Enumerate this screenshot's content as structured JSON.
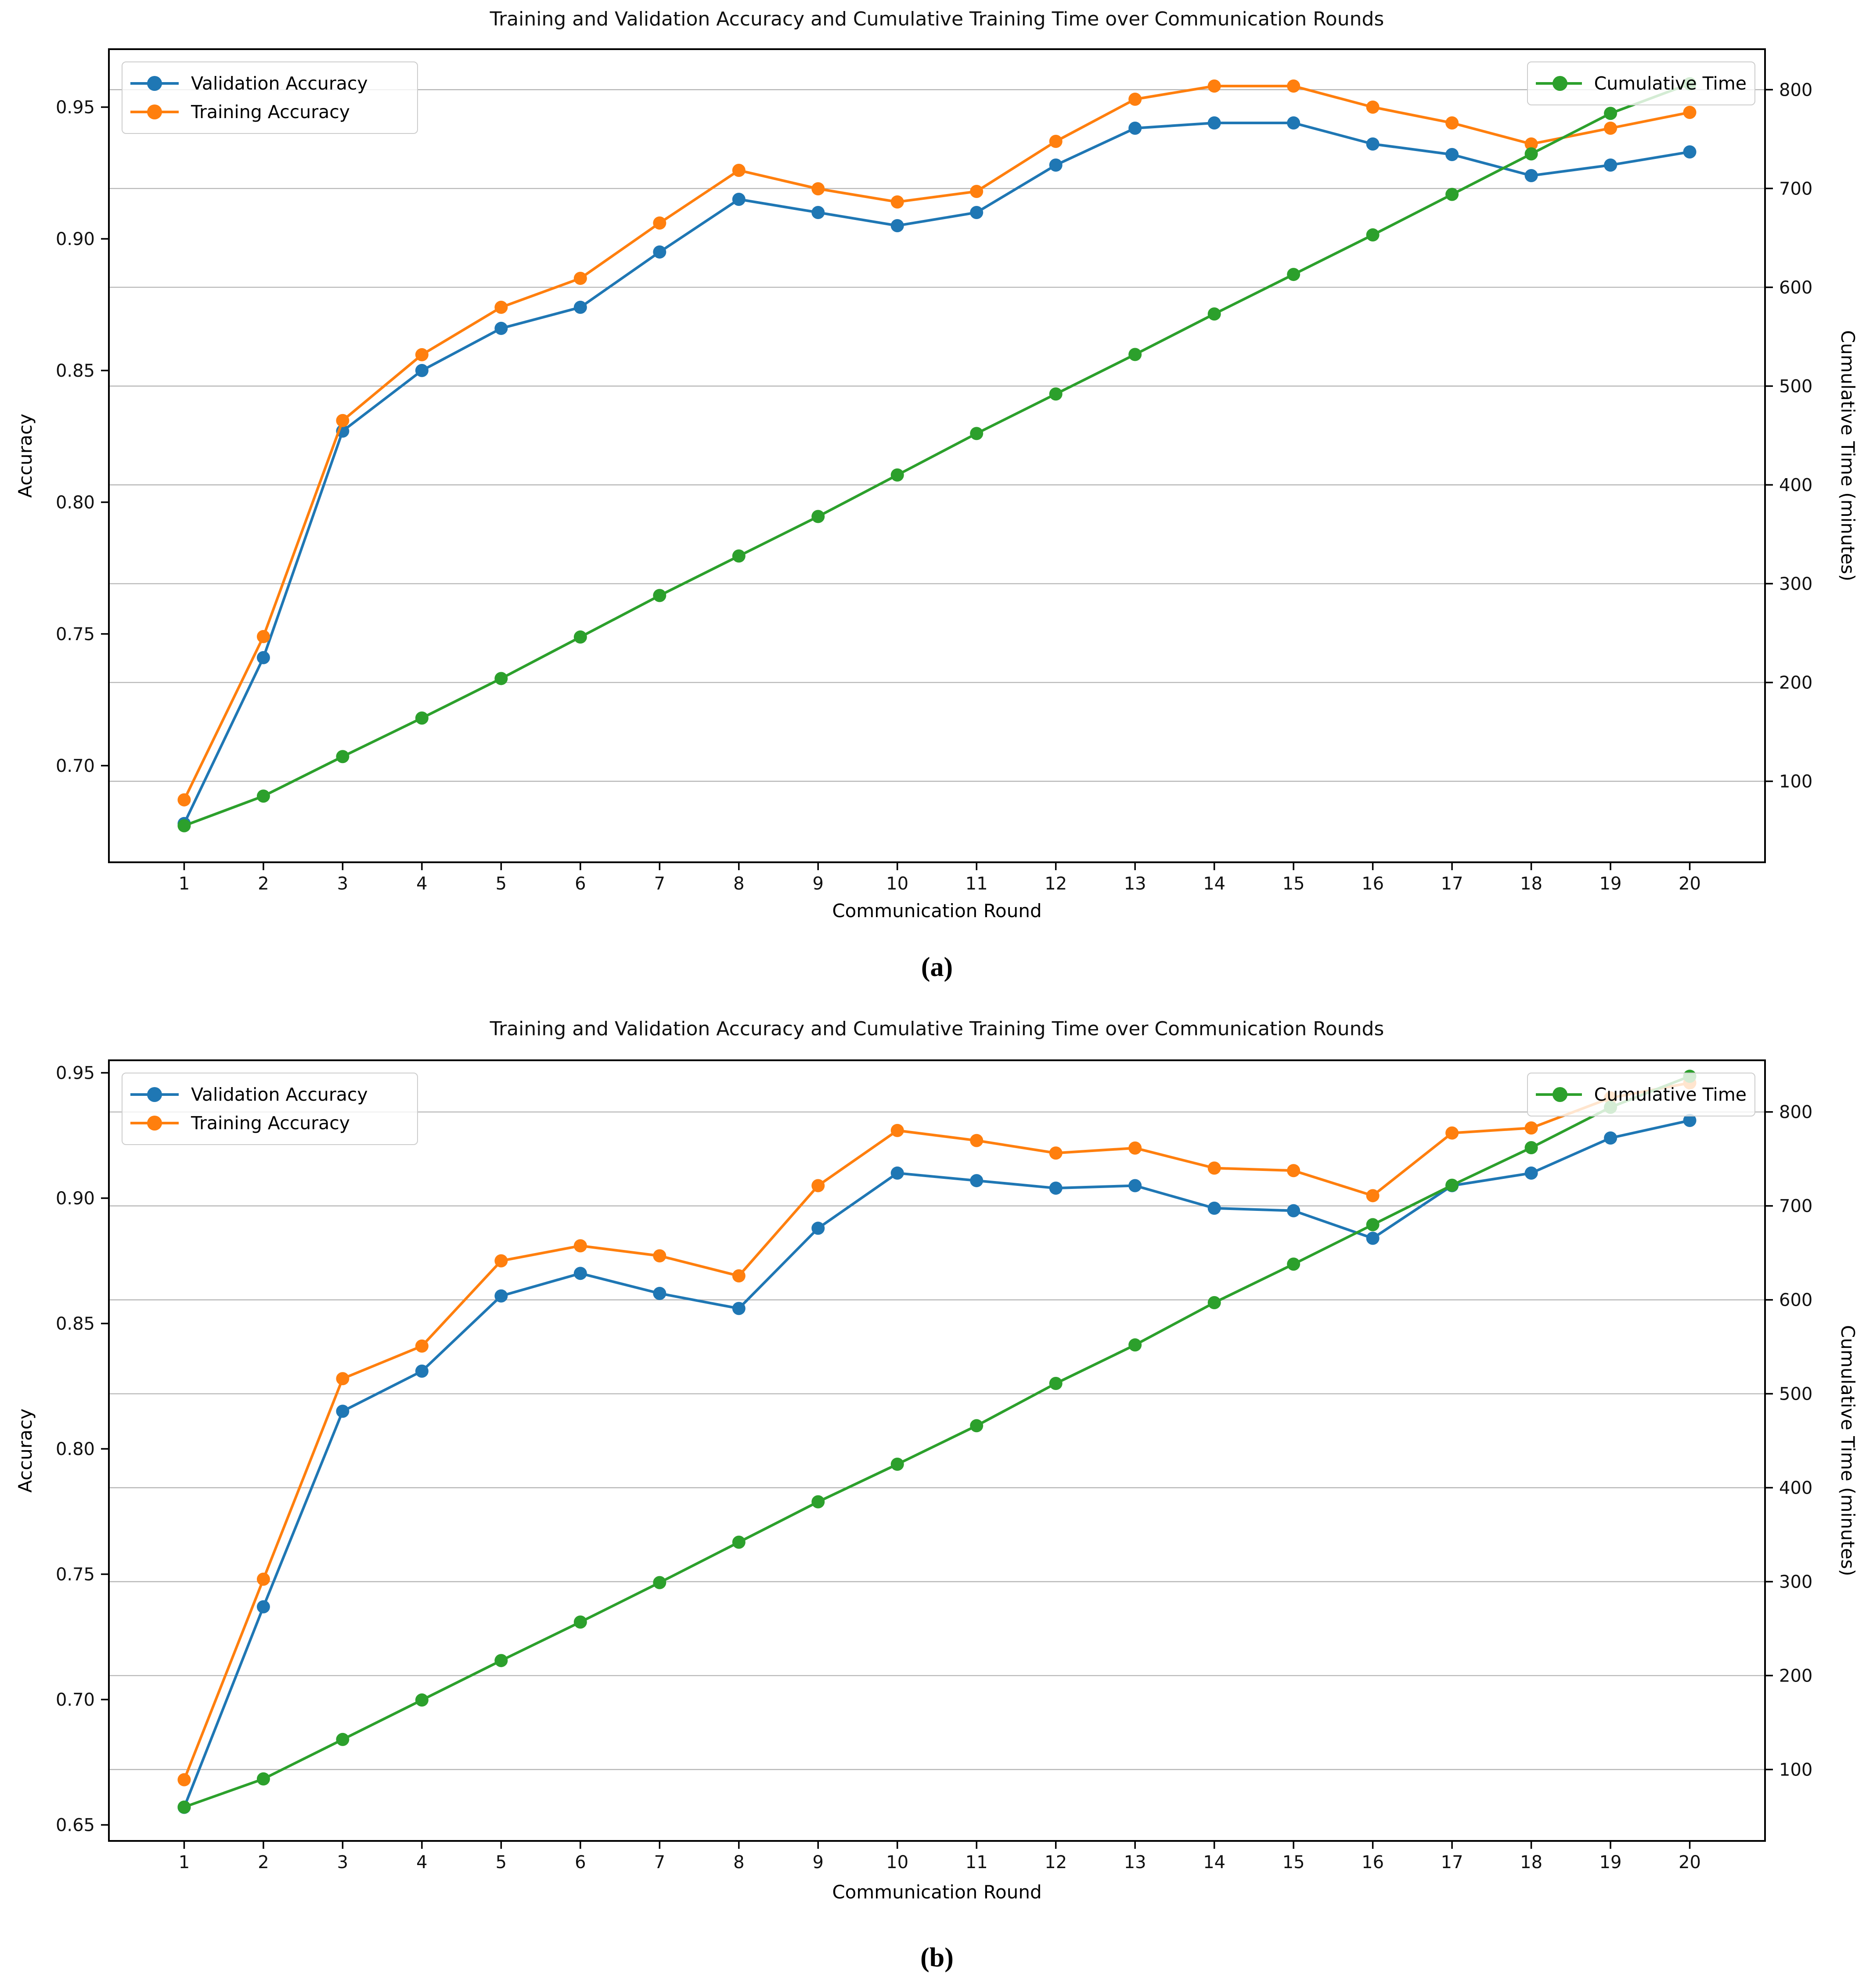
{
  "page": {
    "background": "#ffffff"
  },
  "captions": {
    "a": "(a)",
    "b": "(b)"
  },
  "style": {
    "grid_color": "#b0b0b0",
    "spine_color": "#000000",
    "validation_color": "#1f77b4",
    "training_color": "#ff7f0e",
    "time_color": "#2ca02c"
  },
  "chart_data": [
    {
      "type": "line",
      "panel": "a",
      "title": "Training and Validation Accuracy and Cumulative Training Time over Communication Rounds",
      "xlabel": "Communication Round",
      "ylabel_left": "Accuracy",
      "ylabel_right": "Cumulative Time (minutes)",
      "x": [
        1,
        2,
        3,
        4,
        5,
        6,
        7,
        8,
        9,
        10,
        11,
        12,
        13,
        14,
        15,
        16,
        17,
        18,
        19,
        20
      ],
      "xlim": [
        0.05,
        20.95
      ],
      "ylim_left": [
        0.6633,
        0.972
      ],
      "ylim_right": [
        18,
        841
      ],
      "left_ticks": [
        0.7,
        0.75,
        0.8,
        0.85,
        0.9,
        0.95
      ],
      "right_ticks": [
        100,
        200,
        300,
        400,
        500,
        600,
        700,
        800
      ],
      "grid": "horizontal gridlines at right-axis ticks",
      "legend_left": {
        "position": "upper left",
        "entries": [
          "Validation Accuracy",
          "Training Accuracy"
        ]
      },
      "legend_right": {
        "position": "upper right",
        "entries": [
          "Cumulative Time"
        ]
      },
      "series": [
        {
          "name": "Validation Accuracy",
          "axis": "left",
          "color": "#1f77b4",
          "values": [
            0.678,
            0.741,
            0.827,
            0.85,
            0.866,
            0.874,
            0.895,
            0.915,
            0.91,
            0.905,
            0.91,
            0.928,
            0.942,
            0.944,
            0.944,
            0.936,
            0.932,
            0.924,
            0.928,
            0.933
          ]
        },
        {
          "name": "Training Accuracy",
          "axis": "left",
          "color": "#ff7f0e",
          "values": [
            0.687,
            0.749,
            0.831,
            0.856,
            0.874,
            0.885,
            0.906,
            0.926,
            0.919,
            0.914,
            0.918,
            0.937,
            0.953,
            0.958,
            0.958,
            0.95,
            0.944,
            0.936,
            0.942,
            0.948
          ]
        },
        {
          "name": "Cumulative Time",
          "axis": "right",
          "color": "#2ca02c",
          "values": [
            55,
            85,
            125,
            164,
            204,
            246,
            288,
            328,
            368,
            410,
            452,
            492,
            532,
            573,
            613,
            653,
            694,
            735,
            776,
            806
          ]
        }
      ]
    },
    {
      "type": "line",
      "panel": "b",
      "title": "Training and Validation Accuracy and Cumulative Training Time over Communication Rounds",
      "xlabel": "Communication Round",
      "ylabel_left": "Accuracy",
      "ylabel_right": "Cumulative Time (minutes)",
      "x": [
        1,
        2,
        3,
        4,
        5,
        6,
        7,
        8,
        9,
        10,
        11,
        12,
        13,
        14,
        15,
        16,
        17,
        18,
        19,
        20
      ],
      "xlim": [
        0.05,
        20.95
      ],
      "ylim_left": [
        0.6436,
        0.955
      ],
      "ylim_right": [
        24,
        855
      ],
      "left_ticks": [
        0.65,
        0.7,
        0.75,
        0.8,
        0.85,
        0.9,
        0.95
      ],
      "right_ticks": [
        100,
        200,
        300,
        400,
        500,
        600,
        700,
        800
      ],
      "grid": "horizontal gridlines at right-axis ticks",
      "legend_left": {
        "position": "upper left",
        "entries": [
          "Validation Accuracy",
          "Training Accuracy"
        ]
      },
      "legend_right": {
        "position": "upper right",
        "entries": [
          "Cumulative Time"
        ]
      },
      "series": [
        {
          "name": "Validation Accuracy",
          "axis": "left",
          "color": "#1f77b4",
          "values": [
            0.657,
            0.737,
            0.815,
            0.831,
            0.861,
            0.87,
            0.862,
            0.856,
            0.888,
            0.91,
            0.907,
            0.904,
            0.905,
            0.896,
            0.895,
            0.884,
            0.905,
            0.91,
            0.924,
            0.931
          ]
        },
        {
          "name": "Training Accuracy",
          "axis": "left",
          "color": "#ff7f0e",
          "values": [
            0.668,
            0.748,
            0.828,
            0.841,
            0.875,
            0.881,
            0.877,
            0.869,
            0.905,
            0.927,
            0.923,
            0.918,
            0.92,
            0.912,
            0.911,
            0.901,
            0.926,
            0.928,
            0.94,
            0.946
          ]
        },
        {
          "name": "Cumulative Time",
          "axis": "right",
          "color": "#2ca02c",
          "values": [
            60,
            90,
            132,
            174,
            216,
            257,
            299,
            342,
            385,
            425,
            466,
            511,
            552,
            597,
            638,
            680,
            722,
            762,
            805,
            838
          ]
        }
      ]
    }
  ]
}
